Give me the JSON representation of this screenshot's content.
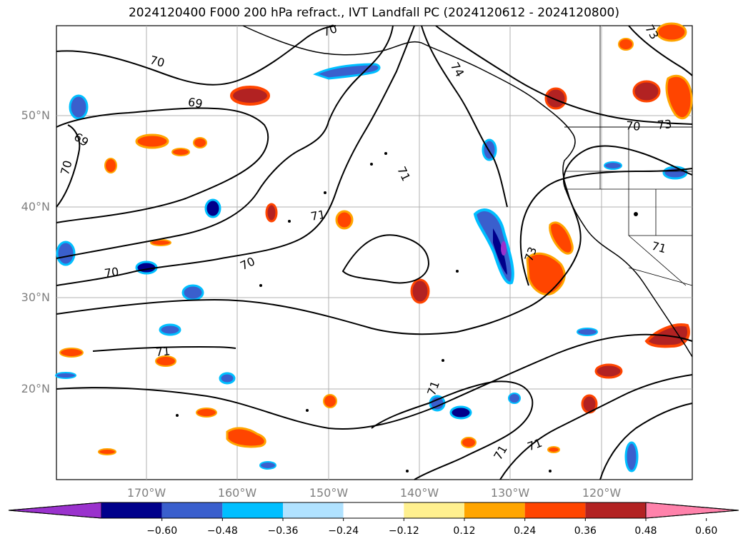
{
  "title": "2024120400 F000 200 hPa refract., IVT Landfall PC (2024120612 - 2024120800)",
  "map": {
    "lat_labels": [
      "50°N",
      "40°N",
      "30°N",
      "20°N"
    ],
    "lon_labels": [
      "170°W",
      "160°W",
      "150°W",
      "140°W",
      "130°W",
      "120°W"
    ],
    "contour_labels": [
      {
        "text": "70"
      },
      {
        "text": "70"
      },
      {
        "text": "69"
      },
      {
        "text": "69"
      },
      {
        "text": "70"
      },
      {
        "text": "71"
      },
      {
        "text": "71"
      },
      {
        "text": "70"
      },
      {
        "text": "70"
      },
      {
        "text": "71"
      },
      {
        "text": "74"
      },
      {
        "text": "73"
      },
      {
        "text": "73"
      },
      {
        "text": "71"
      },
      {
        "text": "71"
      },
      {
        "text": "71"
      },
      {
        "text": "71"
      },
      {
        "text": "73"
      },
      {
        "text": "70"
      }
    ],
    "contour_color": "#000000",
    "gridline_color": "#b0b0b0"
  },
  "colorbar": {
    "colors": [
      "#9a32cd",
      "#00008b",
      "#3a5fcd",
      "#00bfff",
      "#b0e2ff",
      "#ffffff",
      "#fff08f",
      "#ffa500",
      "#ff4500",
      "#b22222",
      "#ff82ab"
    ],
    "ticks": [
      "−0.60",
      "−0.48",
      "−0.36",
      "−0.24",
      "−0.12",
      "0.12",
      "0.24",
      "0.36",
      "0.48",
      "0.60"
    ]
  }
}
